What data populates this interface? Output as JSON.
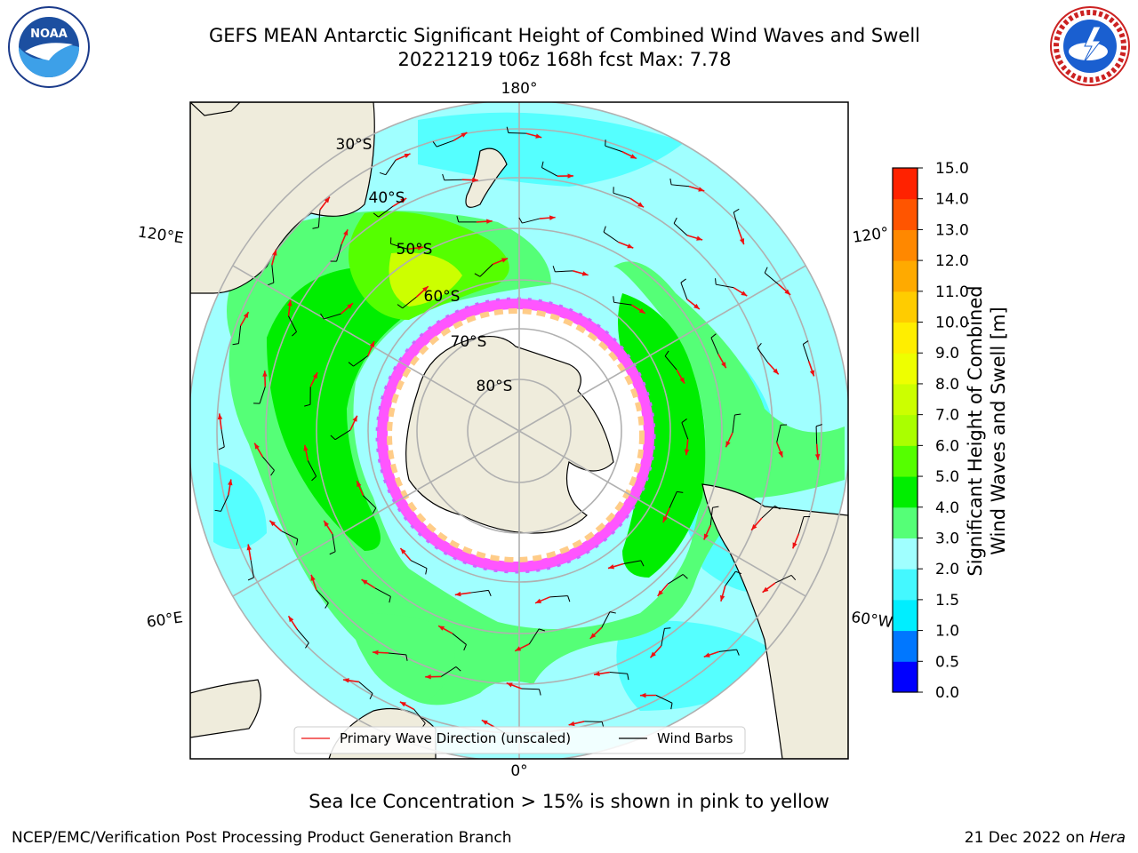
{
  "title": {
    "line1": "GEFS MEAN Antarctic Significant Height of Combined Wind Waves and Swell",
    "line2": "20221219 t06z 168h fcst   Max: 7.78"
  },
  "logos": {
    "left": "noaa-logo",
    "right": "national-weather-service-logo"
  },
  "map": {
    "projection": "south-polar-stereographic",
    "longitude_labels": {
      "top": "180°",
      "left_upper": "120°E",
      "right_upper": "120°",
      "left_lower": "60°E",
      "right_lower": "60°W",
      "bottom": "0°"
    },
    "latitude_labels": [
      "30°S",
      "40°S",
      "50°S",
      "60°S",
      "70°S",
      "80°S"
    ],
    "legend": {
      "primary_wave": "Primary Wave Direction (unscaled)",
      "wind_barbs": "Wind Barbs"
    }
  },
  "colorbar": {
    "title_line1": "Significant Height of Combined",
    "title_line2": "Wind Waves and Swell [m]",
    "tick_labels": [
      "0.0",
      "0.5",
      "1.0",
      "1.5",
      "2.0",
      "3.0",
      "4.0",
      "5.0",
      "6.0",
      "7.0",
      "8.0",
      "9.0",
      "10.0",
      "11.0",
      "12.0",
      "13.0",
      "14.0",
      "15.0"
    ],
    "colors": [
      "#0000ff",
      "#0077ff",
      "#00eeff",
      "#44f8ff",
      "#a0ffff",
      "#55ff77",
      "#00ee00",
      "#55ff00",
      "#aaff00",
      "#ccff00",
      "#eeff00",
      "#ffee00",
      "#ffcc00",
      "#ffaa00",
      "#ff8800",
      "#ff5500",
      "#ff2200"
    ]
  },
  "note": "Sea Ice Concentration > 15% is shown in pink to yellow",
  "footer": {
    "left": "NCEP/EMC/Verification Post Processing Product Generation Branch",
    "right_date": "21 Dec 2022 on",
    "right_host": "Hera"
  }
}
